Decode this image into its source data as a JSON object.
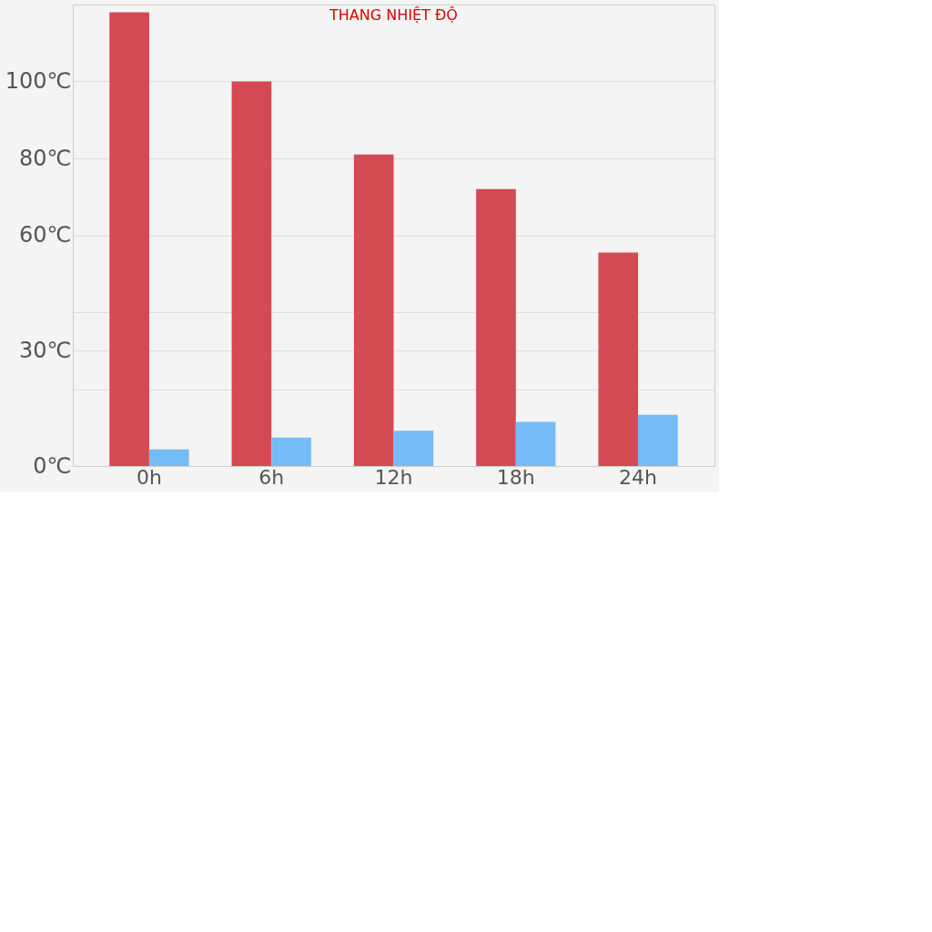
{
  "chart_data": {
    "type": "bar",
    "title": "THANG NHIỆT ĐỘ",
    "categories": [
      "0h",
      "6h",
      "12h",
      "18h",
      "24h"
    ],
    "series": [
      {
        "color": "#d44a52",
        "values": [
          118,
          100,
          81,
          72,
          55.5
        ]
      },
      {
        "color": "#74bbf8",
        "values": [
          4.3,
          7.4,
          9.2,
          11.5,
          13.3
        ]
      }
    ],
    "ylim": [
      0,
      120
    ],
    "yticks": [
      {
        "value": 0,
        "label": "0℃"
      },
      {
        "value": 20,
        "label": null
      },
      {
        "value": 30,
        "label": "30℃"
      },
      {
        "value": 40,
        "label": null
      },
      {
        "value": 60,
        "label": "60℃"
      },
      {
        "value": 80,
        "label": "80℃"
      },
      {
        "value": 100,
        "label": "100℃"
      }
    ],
    "grid": "y"
  }
}
